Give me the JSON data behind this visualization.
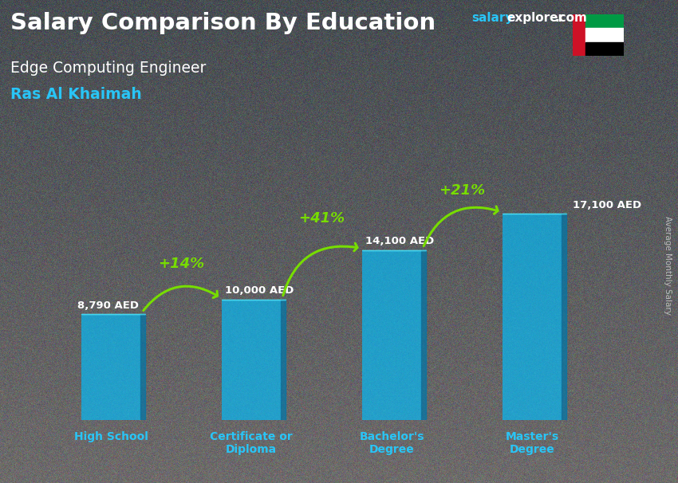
{
  "title": "Salary Comparison By Education",
  "subtitle1": "Edge Computing Engineer",
  "subtitle2": "Ras Al Khaimah",
  "categories": [
    "High School",
    "Certificate or\nDiploma",
    "Bachelor's\nDegree",
    "Master's\nDegree"
  ],
  "values": [
    8790,
    10000,
    14100,
    17100
  ],
  "labels": [
    "8,790 AED",
    "10,000 AED",
    "14,100 AED",
    "17,100 AED"
  ],
  "pct_labels": [
    "+14%",
    "+41%",
    "+21%"
  ],
  "bar_color": "#00BFFF",
  "bar_alpha": 0.65,
  "title_color": "#FFFFFF",
  "subtitle1_color": "#FFFFFF",
  "subtitle2_color": "#29C5F6",
  "label_color": "#FFFFFF",
  "pct_color": "#77DD00",
  "arrow_color": "#77DD00",
  "axis_label_color": "#29C5F6",
  "right_label": "Average Monthly Salary",
  "bg_top": "#6a7a8a",
  "bg_bottom": "#3a4a5a",
  "ylim": [
    0,
    22000
  ],
  "bar_width": 0.42
}
